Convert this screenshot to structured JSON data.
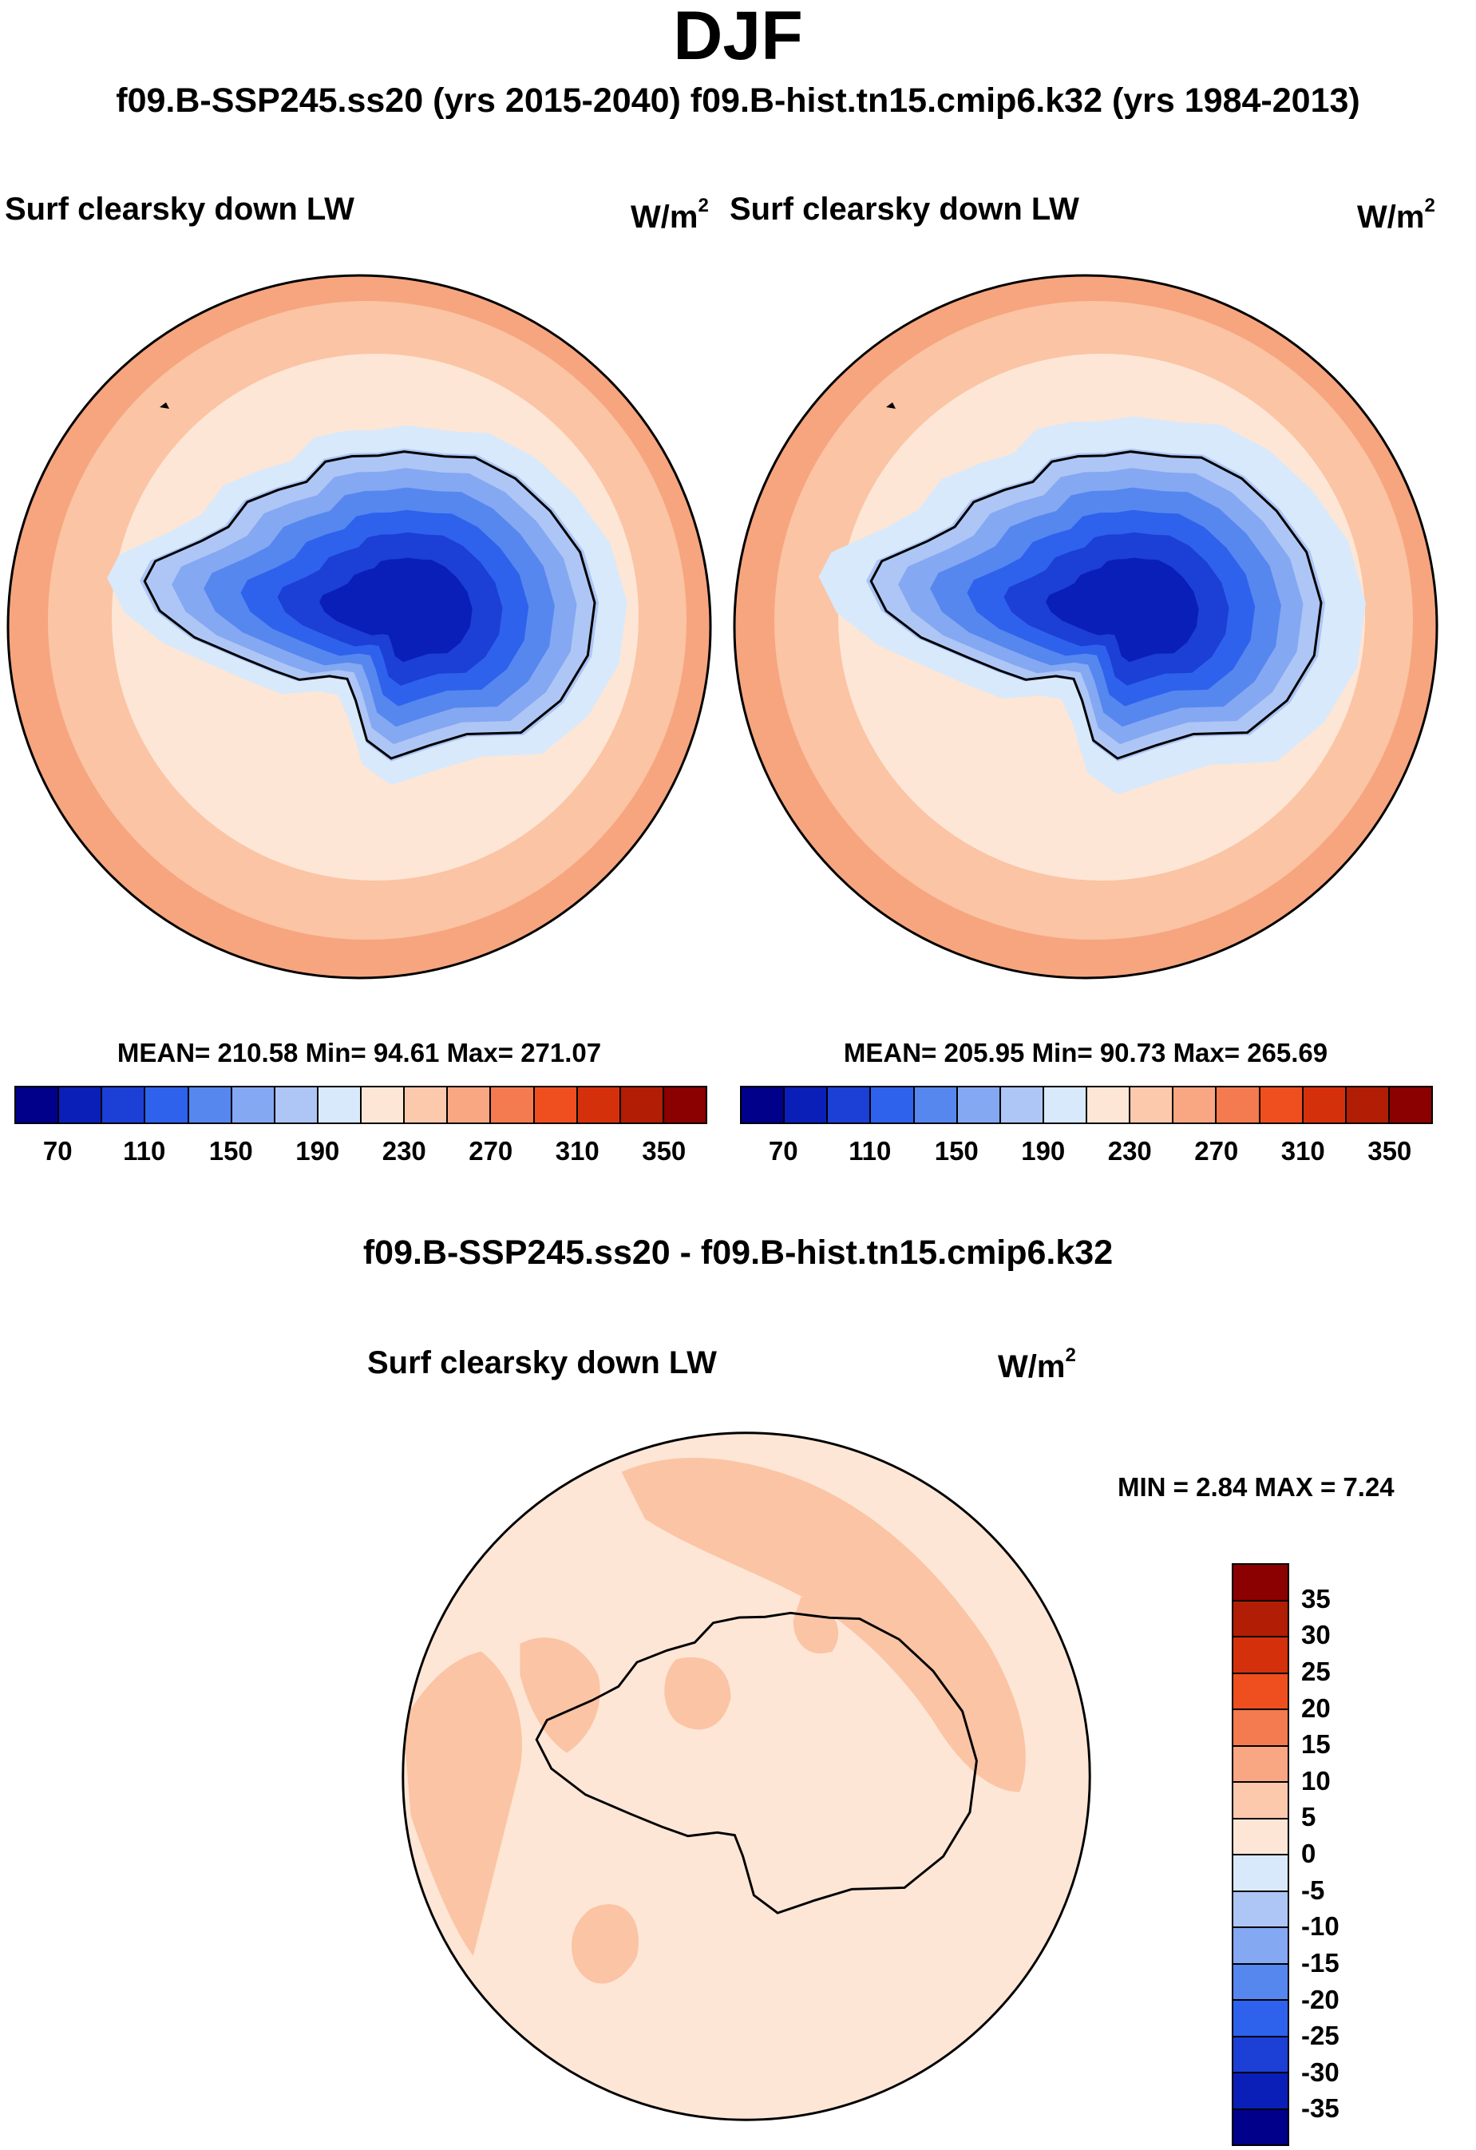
{
  "title": "DJF",
  "subtitle": "f09.B-SSP245.ss20 (yrs 2015-2040)  f09.B-hist.tn15.cmip6.k32 (yrs 1984-2013)",
  "diff_title": "f09.B-SSP245.ss20 - f09.B-hist.tn15.cmip6.k32",
  "colors": {
    "abs_palette": [
      "#00008b",
      "#0a1fb8",
      "#1c3fd6",
      "#2e62ec",
      "#5687ef",
      "#84a8f2",
      "#aec6f5",
      "#d8e9fb",
      "#fde6d6",
      "#fcc9ad",
      "#f9a682",
      "#f47a4f",
      "#ef4f1f",
      "#d5300c",
      "#b21d05",
      "#8b0000"
    ],
    "diff_palette": [
      "#00008b",
      "#0a1fb8",
      "#1c3fd6",
      "#2e62ec",
      "#5687ef",
      "#84a8f2",
      "#aec6f5",
      "#d8e9fb",
      "#fde6d6",
      "#fcc9ad",
      "#f9a682",
      "#f47a4f",
      "#ef4f1f",
      "#d5300c",
      "#b21d05",
      "#8b0000"
    ],
    "ocean_ring_outer": "#f6a57e",
    "ocean_ring_mid": "#fbc4a4",
    "ocean_inner": "#fde6d6",
    "ice_edge": "#d8e9fb",
    "diff_bg": "#fde6d6",
    "diff_patch": "#fbc4a4"
  },
  "chart_data": [
    {
      "type": "heatmap",
      "projection": "south polar stereographic",
      "title": "Surf clearsky down LW",
      "units_base": "W/m",
      "units_exp": "2",
      "case": "f09.B-SSP245.ss20 (yrs 2015-2040)",
      "stats": {
        "mean": "210.58",
        "min": "94.61",
        "max": "271.07"
      },
      "stats_text": "MEAN= 210.58  Min=  94.61  Max= 271.07",
      "colorbar": {
        "levels": [
          70,
          90,
          110,
          130,
          150,
          170,
          190,
          210,
          230,
          250,
          270,
          290,
          310,
          330,
          350
        ],
        "tick_labels": [
          "70",
          "110",
          "150",
          "190",
          "230",
          "270",
          "310",
          "350"
        ],
        "orientation": "horizontal"
      }
    },
    {
      "type": "heatmap",
      "projection": "south polar stereographic",
      "title": "Surf clearsky down LW",
      "units_base": "W/m",
      "units_exp": "2",
      "case": "f09.B-hist.tn15.cmip6.k32 (yrs 1984-2013)",
      "stats": {
        "mean": "205.95",
        "min": "90.73",
        "max": "265.69"
      },
      "stats_text": "MEAN= 205.95  Min=  90.73  Max= 265.69",
      "colorbar": {
        "levels": [
          70,
          90,
          110,
          130,
          150,
          170,
          190,
          210,
          230,
          250,
          270,
          290,
          310,
          330,
          350
        ],
        "tick_labels": [
          "70",
          "110",
          "150",
          "190",
          "230",
          "270",
          "310",
          "350"
        ],
        "orientation": "horizontal"
      }
    },
    {
      "type": "heatmap",
      "projection": "south polar stereographic",
      "title": "Surf clearsky down LW",
      "units_base": "W/m",
      "units_exp": "2",
      "case": "f09.B-SSP245.ss20 - f09.B-hist.tn15.cmip6.k32",
      "stats": {
        "min": "2.84",
        "max": "7.24"
      },
      "stats_text": "MIN =   2.84 MAX =   7.24",
      "colorbar": {
        "levels": [
          -35,
          -30,
          -25,
          -20,
          -15,
          -10,
          -5,
          0,
          5,
          10,
          15,
          20,
          25,
          30,
          35
        ],
        "tick_labels": [
          "35",
          "30",
          "25",
          "20",
          "15",
          "10",
          "5",
          "0",
          "-5",
          "-10",
          "-15",
          "-20",
          "-25",
          "-30",
          "-35"
        ],
        "orientation": "vertical"
      }
    }
  ]
}
